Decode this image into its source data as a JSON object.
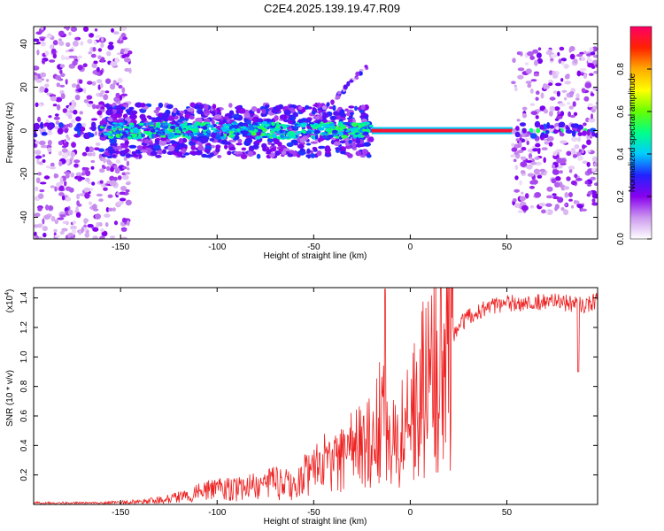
{
  "title": "C2E4.2025.139.19.47.R09",
  "chart_data": [
    {
      "type": "heatmap",
      "name": "spectrogram",
      "xlabel": "Height of straight line (km)",
      "ylabel": "Frequency (Hz)",
      "xlim": [
        -195,
        97
      ],
      "ylim": [
        -50,
        48
      ],
      "xticks": [
        -150,
        -100,
        -50,
        0,
        50
      ],
      "yticks": [
        -40,
        -20,
        0,
        20,
        40
      ],
      "colorbar": {
        "label": "Normalized spectral amplitude",
        "range": [
          0.0,
          1.0
        ],
        "ticks": [
          0.0,
          0.2,
          0.4,
          0.6,
          0.8
        ],
        "tick_labels": [
          "0.0",
          "0.2",
          "0.4",
          "0.6",
          "0.8"
        ],
        "colors": [
          "#ffffff",
          "#cc99ee",
          "#8800ee",
          "#2222ff",
          "#00ccff",
          "#00ff88",
          "#66ff00",
          "#ffff00",
          "#ffaa00",
          "#ff2200",
          "#ff0066"
        ]
      },
      "features": [
        {
          "description": "scattered noise",
          "x_range": [
            -195,
            -145
          ],
          "freq_range": [
            -50,
            48
          ],
          "amplitude": 0.15
        },
        {
          "description": "central band",
          "x_range": [
            -160,
            -20
          ],
          "freq_range": [
            -5,
            5
          ],
          "amplitude": 0.4
        },
        {
          "description": "strong tone",
          "x_range": [
            -20,
            53
          ],
          "freq": 0,
          "amplitude": 0.95
        },
        {
          "description": "scattered noise",
          "x_range": [
            53,
            97
          ],
          "freq_range": [
            -38,
            38
          ],
          "amplitude": 0.15
        },
        {
          "description": "chirp",
          "x_range": [
            -50,
            -22
          ],
          "freq_range": [
            5,
            30
          ],
          "amplitude": 0.25
        }
      ]
    },
    {
      "type": "line",
      "name": "snr",
      "xlabel": "Height of straight line (km)",
      "ylabel": "SNR (10 * v/v)",
      "multiplier": "(x10",
      "multiplier_exp": "4",
      "multiplier_close": ")",
      "xlim": [
        -195,
        97
      ],
      "ylim": [
        0.0,
        1.47
      ],
      "xticks": [
        -150,
        -100,
        -50,
        0,
        50
      ],
      "yticks": [
        0.2,
        0.4,
        0.6,
        0.8,
        1.0,
        1.2,
        1.4
      ],
      "ytick_labels": [
        "0.2",
        "0.4",
        "0.6",
        "0.8",
        "1.0",
        "1.2",
        "1.4"
      ],
      "color": "#ee2222",
      "x": [
        -195,
        -180,
        -160,
        -140,
        -130,
        -120,
        -110,
        -100,
        -90,
        -80,
        -70,
        -60,
        -50,
        -40,
        -30,
        -20,
        -15,
        -10,
        -5,
        0,
        5,
        10,
        15,
        20,
        25,
        30,
        40,
        50,
        60,
        70,
        80,
        90,
        97
      ],
      "y": [
        0.01,
        0.01,
        0.01,
        0.02,
        0.03,
        0.05,
        0.08,
        0.1,
        0.1,
        0.12,
        0.15,
        0.12,
        0.25,
        0.28,
        0.35,
        0.5,
        0.6,
        0.45,
        0.5,
        0.55,
        0.75,
        0.85,
        1.0,
        1.1,
        1.2,
        1.28,
        1.33,
        1.36,
        1.37,
        1.38,
        1.37,
        1.35,
        1.38
      ]
    }
  ]
}
